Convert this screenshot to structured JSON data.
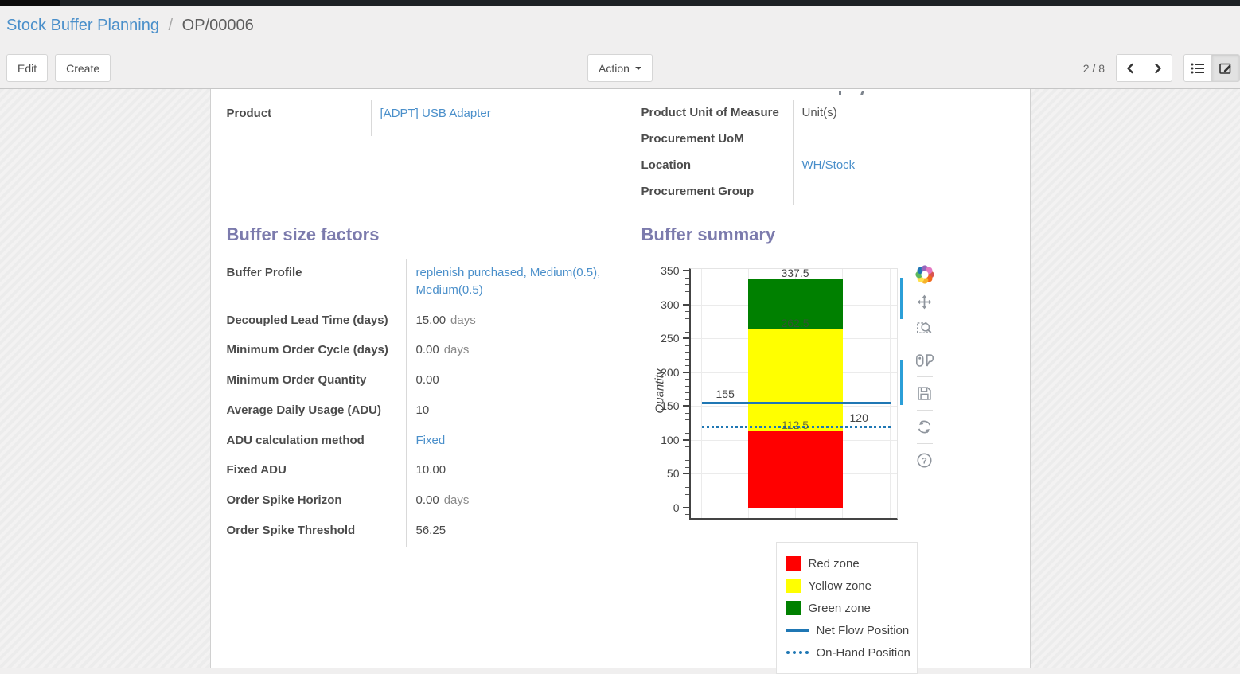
{
  "breadcrumb": {
    "parent": "Stock Buffer Planning",
    "separator": "/",
    "current": "OP/00006"
  },
  "toolbar": {
    "edit_label": "Edit",
    "create_label": "Create",
    "action_label": "Action",
    "pager": "2 / 8",
    "icons": [
      "chevron-left-icon",
      "chevron-right-icon",
      "list-view-icon",
      "form-view-icon"
    ]
  },
  "form": {
    "product": {
      "label": "Product",
      "value": "[ADPT] USB Adapter"
    },
    "right_fields": [
      {
        "label": "Product Unit of Measure",
        "value": "Unit(s)",
        "link": false
      },
      {
        "label": "Procurement UoM",
        "value": "",
        "link": false
      },
      {
        "label": "Location",
        "value": "WH/Stock",
        "link": true
      },
      {
        "label": "Procurement Group",
        "value": "",
        "link": false
      }
    ],
    "buffer_factors": {
      "title": "Buffer size factors",
      "rows": [
        {
          "label": "Buffer Profile",
          "value": "replenish purchased, Medium(0.5), Medium(0.5)",
          "link": true
        },
        {
          "label": "Decoupled Lead Time (days)",
          "value": "15.00",
          "unit": "days"
        },
        {
          "label": "Minimum Order Cycle (days)",
          "value": "0.00",
          "unit": "days"
        },
        {
          "label": "Minimum Order Quantity",
          "value": "0.00"
        },
        {
          "label": "Average Daily Usage (ADU)",
          "value": "10"
        },
        {
          "label": "ADU calculation method",
          "value": "Fixed",
          "link": true
        },
        {
          "label": "Fixed ADU",
          "value": "10.00"
        },
        {
          "label": "Order Spike Horizon",
          "value": "0.00",
          "unit": "days"
        },
        {
          "label": "Order Spike Threshold",
          "value": "56.25"
        }
      ]
    },
    "buffer_summary_title": "Buffer summary"
  },
  "chart_data": {
    "type": "bar",
    "title": "Buffer summary",
    "xlabel": "",
    "ylabel": "Quantity",
    "ylim": [
      0,
      350
    ],
    "ytick_step": 50,
    "ytick_minor_step": 10,
    "grid": true,
    "zones": [
      {
        "name": "Red zone",
        "from": 0,
        "to": 112.5,
        "color": "#ff0000"
      },
      {
        "name": "Yellow zone",
        "from": 112.5,
        "to": 262.5,
        "color": "#ffff00"
      },
      {
        "name": "Green zone",
        "from": 262.5,
        "to": 337.5,
        "color": "#008000"
      }
    ],
    "lines": [
      {
        "name": "Net Flow Position",
        "value": 155,
        "style": "solid",
        "color": "#1f77b4"
      },
      {
        "name": "On-Hand Position",
        "value": 120,
        "style": "dotted",
        "color": "#1f77b4"
      }
    ],
    "zone_top_labels": [
      112.5,
      262.5,
      337.5
    ],
    "legend_position": "below-right",
    "legend": [
      "Red zone",
      "Yellow zone",
      "Green zone",
      "Net Flow Position",
      "On-Hand Position"
    ]
  },
  "modebar": {
    "buttons": [
      "plotly-logo",
      "pan",
      "box-zoom",
      "toggle-hover",
      "save",
      "reset-axes",
      "help"
    ]
  },
  "colors": {
    "link": "#4a8fca",
    "section_title": "#7c7bad",
    "flow_line": "#1f77b4"
  }
}
